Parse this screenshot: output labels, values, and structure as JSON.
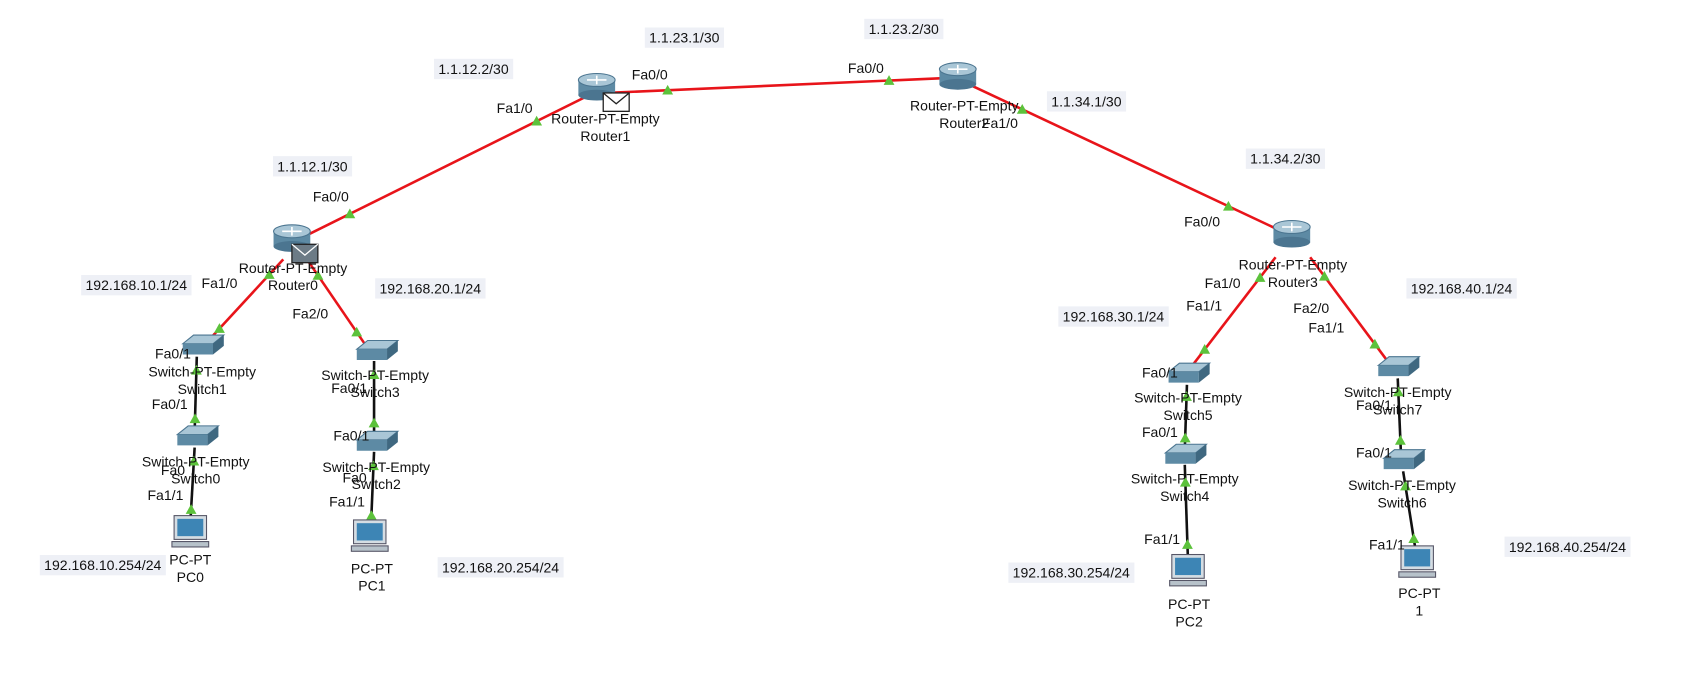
{
  "routers": [
    {
      "model": "Router-PT-Empty",
      "name": "Router1"
    },
    {
      "model": "Router-PT-Empty",
      "name": "Router2"
    },
    {
      "model": "Router-PT-Empty",
      "name": "Router0"
    },
    {
      "model": "Router-PT-Empty",
      "name": "Router3"
    }
  ],
  "switches": [
    {
      "model": "Switch-PT-Empty",
      "name": "Switch1"
    },
    {
      "model": "Switch-PT-Empty",
      "name": "Switch0"
    },
    {
      "model": "Switch-PT-Empty",
      "name": "Switch3"
    },
    {
      "model": "Switch-PT-Empty",
      "name": "Switch2"
    },
    {
      "model": "Switch-PT-Empty",
      "name": "Switch5"
    },
    {
      "model": "Switch-PT-Empty",
      "name": "Switch4"
    },
    {
      "model": "Switch-PT-Empty",
      "name": "Switch7"
    },
    {
      "model": "Switch-PT-Empty",
      "name": "Switch6"
    }
  ],
  "pcs": [
    {
      "model": "PC-PT",
      "name": "PC0"
    },
    {
      "model": "PC-PT",
      "name": "PC1"
    },
    {
      "model": "PC-PT",
      "name": "PC2"
    },
    {
      "model": "PC-PT",
      "name": "1"
    }
  ],
  "ports": [
    "Fa0/0",
    "Fa1/0",
    "Fa0/0",
    "Fa1/0",
    "Fa0/0",
    "Fa1/0",
    "Fa2/0",
    "Fa0/1",
    "Fa0/1",
    "Fa0",
    "Fa1/1",
    "Fa0/1",
    "Fa0/1",
    "Fa0",
    "Fa1/1",
    "Fa0/0",
    "Fa1/0",
    "Fa1/1",
    "Fa2/0",
    "Fa1/1",
    "Fa0/1",
    "Fa0/1",
    "Fa1/1",
    "Fa0/1",
    "Fa0/1",
    "Fa1/1"
  ],
  "addresses": [
    "1.1.23.1/30",
    "1.1.23.2/30",
    "1.1.12.2/30",
    "1.1.34.1/30",
    "1.1.12.1/30",
    "1.1.34.2/30",
    "192.168.10.1/24",
    "192.168.20.1/24",
    "192.168.30.1/24",
    "192.168.40.1/24",
    "192.168.10.254/24",
    "192.168.20.254/24",
    "192.168.30.254/24",
    "192.168.40.254/24"
  ]
}
